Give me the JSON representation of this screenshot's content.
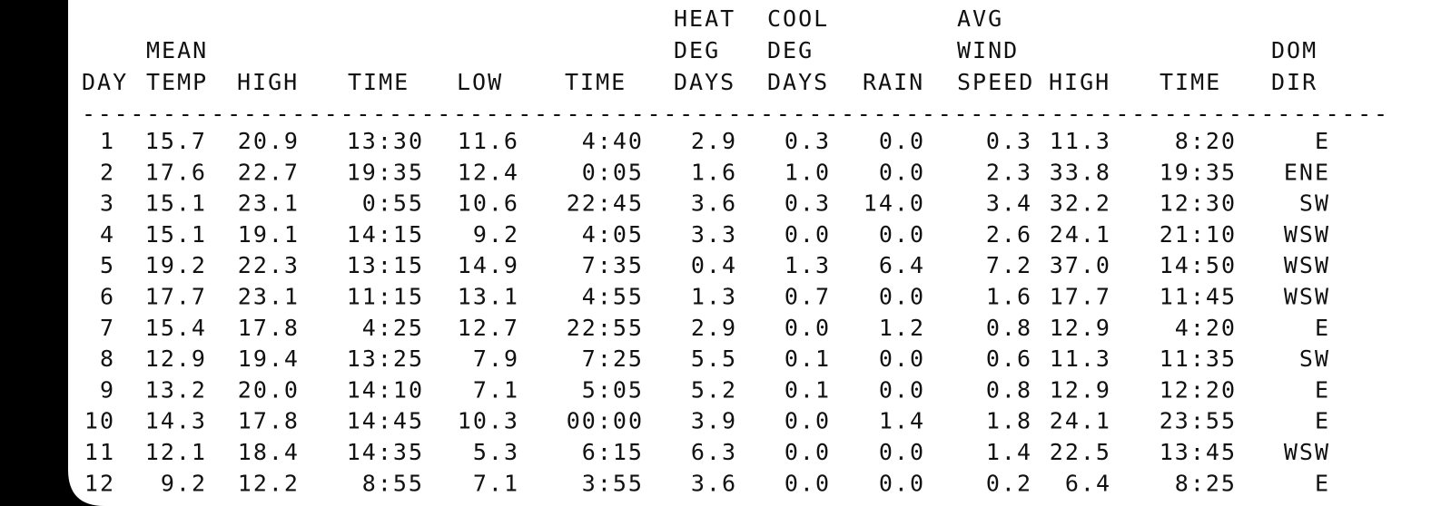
{
  "table": {
    "headers": [
      [
        "DAY"
      ],
      [
        "MEAN",
        "TEMP"
      ],
      [
        "HIGH"
      ],
      [
        "TIME"
      ],
      [
        "LOW"
      ],
      [
        "TIME"
      ],
      [
        "HEAT",
        "DEG",
        "DAYS"
      ],
      [
        "COOL",
        "DEG",
        "DAYS"
      ],
      [
        "RAIN"
      ],
      [
        "AVG",
        "WIND",
        "SPEED"
      ],
      [
        "HIGH"
      ],
      [
        "TIME"
      ],
      [
        "DOM",
        "DIR"
      ]
    ],
    "separator": "---------------------------------------------------------------------------------",
    "rows": [
      [
        "1",
        "15.7",
        "20.9",
        "13:30",
        "11.6",
        "4:40",
        "2.9",
        "0.3",
        "0.0",
        "0.3",
        "11.3",
        "8:20",
        "E"
      ],
      [
        "2",
        "17.6",
        "22.7",
        "19:35",
        "12.4",
        "0:05",
        "1.6",
        "1.0",
        "0.0",
        "2.3",
        "33.8",
        "19:35",
        "ENE"
      ],
      [
        "3",
        "15.1",
        "23.1",
        "0:55",
        "10.6",
        "22:45",
        "3.6",
        "0.3",
        "14.0",
        "3.4",
        "32.2",
        "12:30",
        "SW"
      ],
      [
        "4",
        "15.1",
        "19.1",
        "14:15",
        "9.2",
        "4:05",
        "3.3",
        "0.0",
        "0.0",
        "2.6",
        "24.1",
        "21:10",
        "WSW"
      ],
      [
        "5",
        "19.2",
        "22.3",
        "13:15",
        "14.9",
        "7:35",
        "0.4",
        "1.3",
        "6.4",
        "7.2",
        "37.0",
        "14:50",
        "WSW"
      ],
      [
        "6",
        "17.7",
        "23.1",
        "11:15",
        "13.1",
        "4:55",
        "1.3",
        "0.7",
        "0.0",
        "1.6",
        "17.7",
        "11:45",
        "WSW"
      ],
      [
        "7",
        "15.4",
        "17.8",
        "4:25",
        "12.7",
        "22:55",
        "2.9",
        "0.0",
        "1.2",
        "0.8",
        "12.9",
        "4:20",
        "E"
      ],
      [
        "8",
        "12.9",
        "19.4",
        "13:25",
        "7.9",
        "7:25",
        "5.5",
        "0.1",
        "0.0",
        "0.6",
        "11.3",
        "11:35",
        "SW"
      ],
      [
        "9",
        "13.2",
        "20.0",
        "14:10",
        "7.1",
        "5:05",
        "5.2",
        "0.1",
        "0.0",
        "0.8",
        "12.9",
        "12:20",
        "E"
      ],
      [
        "10",
        "14.3",
        "17.8",
        "14:45",
        "10.3",
        "00:00",
        "3.9",
        "0.0",
        "1.4",
        "1.8",
        "24.1",
        "23:55",
        "E"
      ],
      [
        "11",
        "12.1",
        "18.4",
        "14:35",
        "5.3",
        "6:15",
        "6.3",
        "0.0",
        "0.0",
        "1.4",
        "22.5",
        "13:45",
        "WSW"
      ],
      [
        "12",
        "9.2",
        "12.2",
        "8:55",
        "7.1",
        "3:55",
        "3.6",
        "0.0",
        "0.0",
        "0.2",
        "6.4",
        "8:25",
        "E"
      ]
    ]
  }
}
